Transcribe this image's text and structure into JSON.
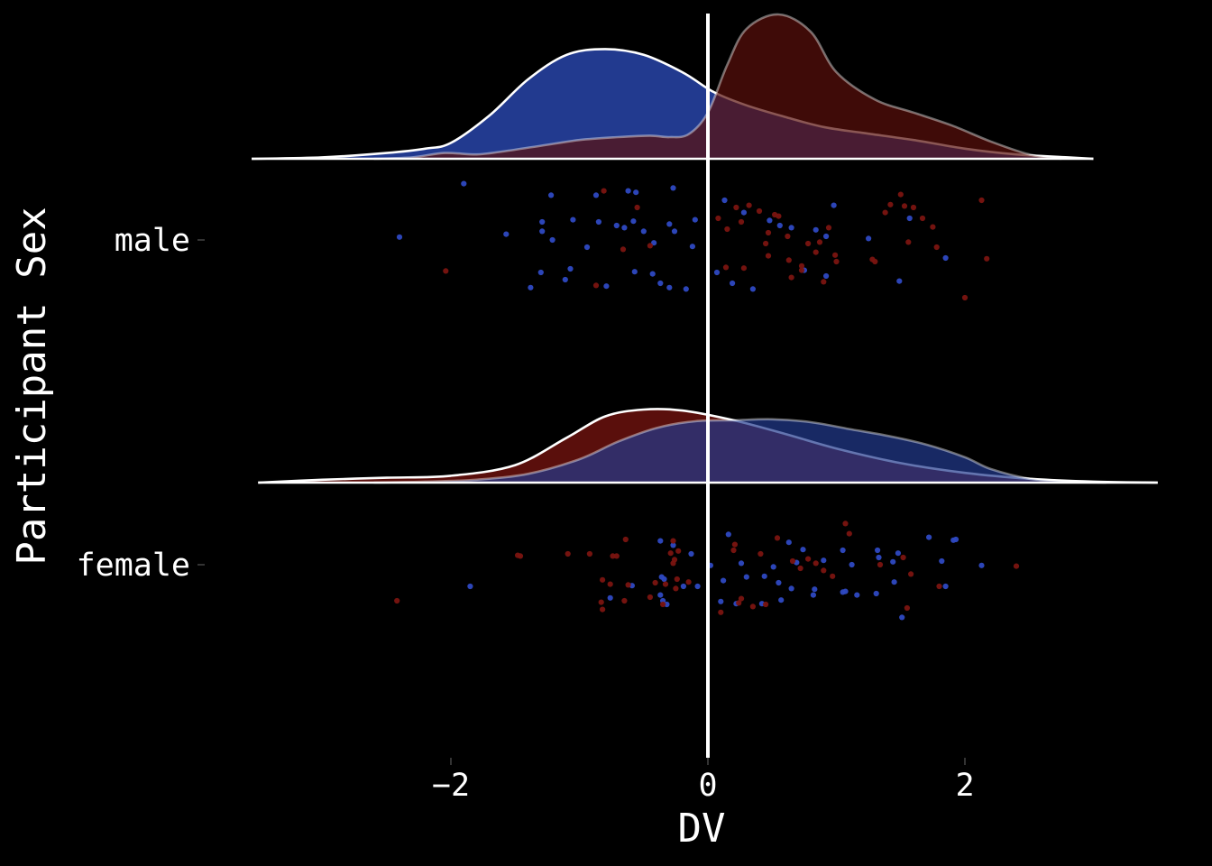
{
  "chart_data": {
    "type": "ridgeline",
    "title": "",
    "xlabel": "DV",
    "ylabel": "Participant Sex",
    "xlim": [
      -3.5,
      3.5
    ],
    "x_ticks": [
      -2,
      0,
      2
    ],
    "x_tick_labels": [
      "−2",
      "0",
      "2"
    ],
    "categories": [
      "male",
      "female"
    ],
    "reference_line_x": 0,
    "grid": false,
    "legend": "none",
    "colors": {
      "background": "#000000",
      "series_blue": "#223a8f",
      "series_red": "#5a0f0c",
      "line": "#ffffff",
      "text": "#ffffff"
    },
    "densities": {
      "male": {
        "xrange": [
          -3.55,
          3.0
        ],
        "blue": [
          [
            -3.55,
            0
          ],
          [
            -3.0,
            0.01
          ],
          [
            -2.5,
            0.04
          ],
          [
            -2.2,
            0.07
          ],
          [
            -2.0,
            0.11
          ],
          [
            -1.7,
            0.3
          ],
          [
            -1.4,
            0.55
          ],
          [
            -1.1,
            0.72
          ],
          [
            -0.8,
            0.76
          ],
          [
            -0.5,
            0.72
          ],
          [
            -0.2,
            0.6
          ],
          [
            0.05,
            0.46
          ],
          [
            0.3,
            0.37
          ],
          [
            0.6,
            0.29
          ],
          [
            0.9,
            0.22
          ],
          [
            1.2,
            0.18
          ],
          [
            1.6,
            0.13
          ],
          [
            2.0,
            0.07
          ],
          [
            2.4,
            0.03
          ],
          [
            2.8,
            0.01
          ],
          [
            3.0,
            0
          ]
        ],
        "red": [
          [
            -2.6,
            0
          ],
          [
            -2.3,
            0.01
          ],
          [
            -2.05,
            0.04
          ],
          [
            -1.8,
            0.03
          ],
          [
            -1.6,
            0.05
          ],
          [
            -1.3,
            0.09
          ],
          [
            -1.0,
            0.13
          ],
          [
            -0.7,
            0.15
          ],
          [
            -0.45,
            0.16
          ],
          [
            -0.3,
            0.15
          ],
          [
            -0.15,
            0.17
          ],
          [
            0.0,
            0.32
          ],
          [
            0.15,
            0.65
          ],
          [
            0.3,
            0.9
          ],
          [
            0.55,
            1.0
          ],
          [
            0.8,
            0.88
          ],
          [
            1.0,
            0.6
          ],
          [
            1.3,
            0.41
          ],
          [
            1.6,
            0.32
          ],
          [
            1.9,
            0.23
          ],
          [
            2.2,
            0.12
          ],
          [
            2.5,
            0.03
          ],
          [
            2.75,
            0
          ]
        ]
      },
      "female": {
        "xrange": [
          -3.5,
          3.5
        ],
        "blue": [
          [
            -2.6,
            0
          ],
          [
            -2.2,
            0.01
          ],
          [
            -1.8,
            0.03
          ],
          [
            -1.4,
            0.09
          ],
          [
            -1.0,
            0.24
          ],
          [
            -0.7,
            0.42
          ],
          [
            -0.4,
            0.56
          ],
          [
            -0.1,
            0.63
          ],
          [
            0.2,
            0.64
          ],
          [
            0.5,
            0.65
          ],
          [
            0.8,
            0.62
          ],
          [
            1.1,
            0.55
          ],
          [
            1.4,
            0.48
          ],
          [
            1.7,
            0.39
          ],
          [
            2.0,
            0.26
          ],
          [
            2.2,
            0.14
          ],
          [
            2.5,
            0.04
          ],
          [
            2.8,
            0.01
          ],
          [
            3.1,
            0
          ]
        ],
        "red": [
          [
            -3.5,
            0
          ],
          [
            -3.0,
            0.03
          ],
          [
            -2.5,
            0.05
          ],
          [
            -2.0,
            0.07
          ],
          [
            -1.5,
            0.18
          ],
          [
            -1.1,
            0.46
          ],
          [
            -0.8,
            0.68
          ],
          [
            -0.5,
            0.75
          ],
          [
            -0.2,
            0.74
          ],
          [
            0.2,
            0.64
          ],
          [
            0.6,
            0.5
          ],
          [
            1.0,
            0.35
          ],
          [
            1.5,
            0.2
          ],
          [
            2.0,
            0.1
          ],
          [
            2.5,
            0.04
          ],
          [
            3.0,
            0.01
          ],
          [
            3.5,
            0
          ]
        ]
      }
    },
    "points": {
      "male": {
        "blue": [
          [
            -1.9,
            0.78
          ],
          [
            -1.22,
            0.62
          ],
          [
            -0.87,
            0.62
          ],
          [
            -0.62,
            0.68
          ],
          [
            -0.56,
            0.66
          ],
          [
            -0.27,
            0.72
          ],
          [
            -2.4,
            0.04
          ],
          [
            -1.57,
            0.08
          ],
          [
            -1.29,
            0.25
          ],
          [
            -1.29,
            0.12
          ],
          [
            -1.21,
            0.0
          ],
          [
            -1.05,
            0.28
          ],
          [
            -0.94,
            -0.1
          ],
          [
            -0.85,
            0.25
          ],
          [
            -0.71,
            0.2
          ],
          [
            -0.65,
            0.17
          ],
          [
            -0.58,
            0.26
          ],
          [
            -0.5,
            0.12
          ],
          [
            -0.42,
            -0.04
          ],
          [
            -0.3,
            0.22
          ],
          [
            -0.26,
            0.12
          ],
          [
            -0.12,
            -0.09
          ],
          [
            -0.1,
            0.28
          ],
          [
            0.48,
            0.27
          ],
          [
            0.56,
            0.2
          ],
          [
            0.84,
            0.14
          ],
          [
            0.92,
            0.05
          ],
          [
            1.25,
            0.02
          ],
          [
            1.57,
            0.3
          ],
          [
            1.85,
            -0.25
          ],
          [
            -1.38,
            -0.66
          ],
          [
            -1.11,
            -0.55
          ],
          [
            -1.07,
            -0.4
          ],
          [
            -0.79,
            -0.64
          ],
          [
            -0.57,
            -0.44
          ],
          [
            -0.43,
            -0.47
          ],
          [
            -0.37,
            -0.6
          ],
          [
            -0.3,
            -0.66
          ],
          [
            -0.17,
            -0.68
          ],
          [
            0.07,
            -0.45
          ],
          [
            0.19,
            -0.6
          ],
          [
            0.35,
            -0.68
          ],
          [
            0.75,
            -0.42
          ],
          [
            0.92,
            -0.5
          ],
          [
            1.49,
            -0.57
          ],
          [
            0.98,
            0.48
          ],
          [
            0.65,
            0.17
          ],
          [
            -1.3,
            -0.45
          ],
          [
            0.13,
            0.55
          ],
          [
            0.28,
            0.38
          ]
        ],
        "red": [
          [
            -2.04,
            -0.43
          ],
          [
            -0.81,
            0.68
          ],
          [
            -0.66,
            -0.13
          ],
          [
            -0.45,
            -0.08
          ],
          [
            -0.87,
            -0.63
          ],
          [
            0.08,
            0.3
          ],
          [
            0.15,
            0.15
          ],
          [
            0.22,
            0.45
          ],
          [
            0.26,
            0.25
          ],
          [
            0.32,
            0.48
          ],
          [
            0.47,
            0.1
          ],
          [
            0.52,
            0.35
          ],
          [
            0.55,
            0.33
          ],
          [
            0.63,
            -0.28
          ],
          [
            0.73,
            -0.36
          ],
          [
            0.78,
            -0.05
          ],
          [
            0.87,
            -0.03
          ],
          [
            0.94,
            0.17
          ],
          [
            1.0,
            -0.3
          ],
          [
            1.3,
            -0.3
          ],
          [
            1.38,
            0.38
          ],
          [
            1.42,
            0.49
          ],
          [
            1.53,
            0.47
          ],
          [
            1.6,
            0.45
          ],
          [
            1.67,
            0.3
          ],
          [
            1.75,
            0.18
          ],
          [
            1.78,
            -0.1
          ],
          [
            2.13,
            0.55
          ],
          [
            2.17,
            -0.26
          ],
          [
            2.0,
            -0.8
          ],
          [
            0.28,
            -0.39
          ],
          [
            0.45,
            -0.05
          ],
          [
            0.47,
            -0.22
          ],
          [
            0.65,
            -0.52
          ],
          [
            0.73,
            -0.42
          ],
          [
            0.9,
            -0.58
          ],
          [
            1.28,
            -0.27
          ],
          [
            1.56,
            -0.03
          ],
          [
            0.14,
            -0.38
          ],
          [
            0.62,
            0.05
          ],
          [
            0.84,
            -0.17
          ],
          [
            0.99,
            -0.21
          ],
          [
            -0.55,
            0.45
          ],
          [
            0.4,
            0.4
          ],
          [
            1.5,
            0.63
          ]
        ]
      },
      "female": {
        "blue": [
          [
            0.16,
            0.42
          ],
          [
            0.63,
            0.31
          ],
          [
            0.74,
            0.21
          ],
          [
            0.9,
            0.06
          ],
          [
            1.48,
            0.16
          ],
          [
            1.72,
            0.38
          ],
          [
            1.93,
            0.35
          ],
          [
            -0.37,
            0.33
          ],
          [
            -0.27,
            0.27
          ],
          [
            -0.13,
            0.15
          ],
          [
            1.44,
            0.04
          ],
          [
            0.26,
            0.02
          ],
          [
            0.69,
            0.03
          ],
          [
            1.12,
            0.0
          ],
          [
            1.33,
            0.1
          ],
          [
            1.32,
            0.2
          ],
          [
            1.82,
            0.05
          ],
          [
            2.13,
            -0.01
          ],
          [
            0.02,
            -0.01
          ],
          [
            0.3,
            -0.17
          ],
          [
            0.51,
            -0.03
          ],
          [
            0.12,
            -0.22
          ],
          [
            -1.85,
            -0.3
          ],
          [
            -0.59,
            -0.29
          ],
          [
            -0.36,
            -0.17
          ],
          [
            -0.34,
            -0.2
          ],
          [
            -0.19,
            -0.3
          ],
          [
            -0.08,
            -0.3
          ],
          [
            0.44,
            -0.16
          ],
          [
            0.55,
            -0.25
          ],
          [
            0.65,
            -0.33
          ],
          [
            0.83,
            -0.34
          ],
          [
            1.05,
            -0.38
          ],
          [
            1.07,
            -0.37
          ],
          [
            1.31,
            -0.4
          ],
          [
            1.45,
            -0.24
          ],
          [
            1.85,
            -0.3
          ],
          [
            -0.76,
            -0.46
          ],
          [
            -0.37,
            -0.42
          ],
          [
            -0.32,
            -0.55
          ],
          [
            -0.35,
            -0.5
          ],
          [
            0.1,
            -0.51
          ],
          [
            0.22,
            -0.54
          ],
          [
            0.42,
            -0.54
          ],
          [
            0.57,
            -0.49
          ],
          [
            0.82,
            -0.42
          ],
          [
            1.16,
            -0.42
          ],
          [
            1.51,
            -0.73
          ],
          [
            1.91,
            0.34
          ],
          [
            1.05,
            0.2
          ]
        ],
        "red": [
          [
            -0.64,
            0.35
          ],
          [
            -0.27,
            0.33
          ],
          [
            -0.23,
            0.19
          ],
          [
            -1.48,
            0.13
          ],
          [
            -1.46,
            0.12
          ],
          [
            -0.92,
            0.15
          ],
          [
            -0.74,
            0.12
          ],
          [
            -1.09,
            0.15
          ],
          [
            -0.29,
            0.16
          ],
          [
            -0.26,
            0.07
          ],
          [
            0.41,
            0.15
          ],
          [
            0.66,
            0.05
          ],
          [
            0.78,
            0.08
          ],
          [
            -0.71,
            0.12
          ],
          [
            -0.27,
            0.02
          ],
          [
            0.2,
            0.2
          ],
          [
            0.21,
            0.28
          ],
          [
            0.54,
            0.37
          ],
          [
            1.07,
            0.57
          ],
          [
            1.1,
            0.43
          ],
          [
            1.52,
            0.1
          ],
          [
            2.4,
            -0.02
          ],
          [
            1.34,
            0.0
          ],
          [
            0.72,
            -0.05
          ],
          [
            0.84,
            0.02
          ],
          [
            0.9,
            -0.08
          ],
          [
            0.97,
            -0.16
          ],
          [
            -0.82,
            -0.21
          ],
          [
            -0.76,
            -0.27
          ],
          [
            -0.62,
            -0.28
          ],
          [
            -0.41,
            -0.25
          ],
          [
            -0.33,
            -0.27
          ],
          [
            -0.24,
            -0.2
          ],
          [
            -0.15,
            -0.24
          ],
          [
            -0.25,
            -0.33
          ],
          [
            -0.45,
            -0.45
          ],
          [
            -0.65,
            -0.5
          ],
          [
            -0.83,
            -0.52
          ],
          [
            0.26,
            -0.47
          ],
          [
            0.24,
            -0.53
          ],
          [
            0.35,
            -0.58
          ],
          [
            0.45,
            -0.55
          ],
          [
            -2.42,
            -0.5
          ],
          [
            1.58,
            -0.13
          ],
          [
            1.55,
            -0.6
          ],
          [
            1.8,
            -0.3
          ],
          [
            -0.82,
            -0.62
          ],
          [
            -0.35,
            -0.55
          ],
          [
            0.1,
            -0.66
          ]
        ]
      }
    }
  }
}
